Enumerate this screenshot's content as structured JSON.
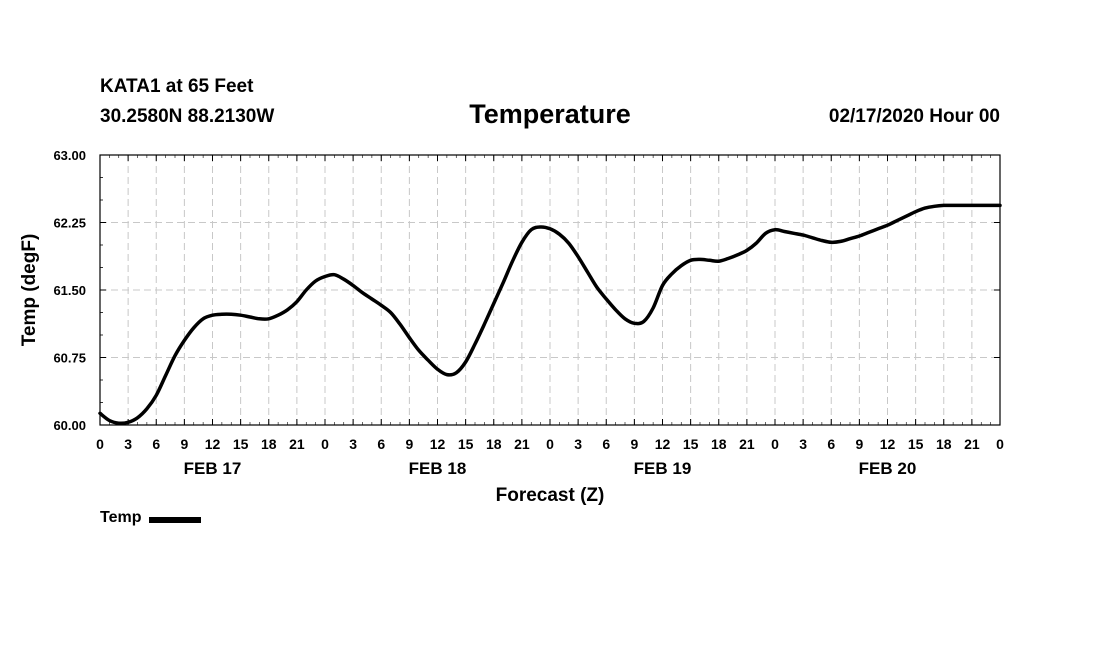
{
  "header": {
    "station": "KATA1 at 65 Feet",
    "coords": "30.2580N 88.2130W",
    "title": "Temperature",
    "date": "02/17/2020 Hour 00"
  },
  "legend": {
    "label": "Temp"
  },
  "chart_data": {
    "type": "line",
    "title": "Temperature",
    "xlabel": "Forecast (Z)",
    "ylabel": "Temp (degF)",
    "ylim": [
      60.0,
      63.0
    ],
    "y_ticks": [
      "60.00",
      "60.75",
      "61.50",
      "62.25",
      "63.00"
    ],
    "x_range_hours": [
      0,
      96
    ],
    "x_tick_labels": [
      "0",
      "3",
      "6",
      "9",
      "12",
      "15",
      "18",
      "21",
      "0",
      "3",
      "6",
      "9",
      "12",
      "15",
      "18",
      "21",
      "0",
      "3",
      "6",
      "9",
      "12",
      "15",
      "18",
      "21",
      "0",
      "3",
      "6",
      "9",
      "12",
      "15",
      "18",
      "21",
      "0"
    ],
    "date_labels": [
      {
        "hour": 12,
        "label": "FEB 17"
      },
      {
        "hour": 36,
        "label": "FEB 18"
      },
      {
        "hour": 60,
        "label": "FEB 19"
      },
      {
        "hour": 84,
        "label": "FEB 20"
      }
    ],
    "grid": true,
    "series": [
      {
        "name": "Temp",
        "x": [
          0,
          1,
          2,
          3,
          4,
          5,
          6,
          7,
          8,
          9,
          10,
          11,
          12,
          13,
          14,
          15,
          16,
          17,
          18,
          19,
          20,
          21,
          22,
          23,
          24,
          25,
          26,
          27,
          28,
          29,
          30,
          31,
          32,
          33,
          34,
          35,
          36,
          37,
          38,
          39,
          40,
          41,
          42,
          43,
          44,
          45,
          46,
          47,
          48,
          49,
          50,
          51,
          52,
          53,
          54,
          55,
          56,
          57,
          58,
          59,
          60,
          61,
          62,
          63,
          64,
          65,
          66,
          67,
          68,
          69,
          70,
          71,
          72,
          73,
          74,
          75,
          76,
          77,
          78,
          79,
          80,
          81,
          82,
          83,
          84,
          85,
          86,
          87,
          88,
          89,
          90,
          91,
          92,
          93,
          94,
          95,
          96
        ],
        "values": [
          60.13,
          60.05,
          60.02,
          60.03,
          60.08,
          60.18,
          60.33,
          60.55,
          60.77,
          60.94,
          61.08,
          61.18,
          61.22,
          61.23,
          61.23,
          61.22,
          61.2,
          61.18,
          61.18,
          61.22,
          61.28,
          61.37,
          61.5,
          61.6,
          61.65,
          61.67,
          61.62,
          61.55,
          61.47,
          61.4,
          61.33,
          61.25,
          61.12,
          60.97,
          60.83,
          60.72,
          60.62,
          60.56,
          60.58,
          60.7,
          60.9,
          61.12,
          61.35,
          61.58,
          61.82,
          62.03,
          62.17,
          62.2,
          62.18,
          62.12,
          62.02,
          61.87,
          61.7,
          61.53,
          61.4,
          61.28,
          61.18,
          61.13,
          61.15,
          61.3,
          61.55,
          61.68,
          61.77,
          61.83,
          61.84,
          61.83,
          61.82,
          61.85,
          61.89,
          61.94,
          62.02,
          62.13,
          62.17,
          62.15,
          62.13,
          62.11,
          62.08,
          62.05,
          62.03,
          62.04,
          62.07,
          62.1,
          62.14,
          62.18,
          62.22,
          62.27,
          62.32,
          62.37,
          62.41,
          62.43,
          62.44,
          62.44,
          62.44,
          62.44,
          62.44,
          62.44,
          62.44
        ]
      }
    ]
  }
}
